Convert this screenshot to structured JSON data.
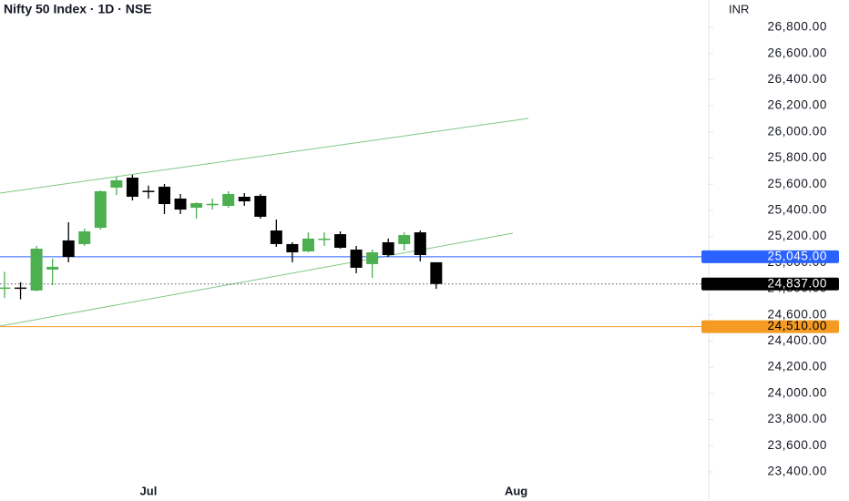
{
  "chart_data": {
    "type": "candlestick",
    "title": "Nifty 50 Index · 1D · NSE",
    "currency": "INR",
    "categories": [
      null,
      null,
      null,
      null,
      null,
      null,
      null,
      null,
      null,
      "Jul",
      null,
      null,
      null,
      null,
      null,
      null,
      null,
      null,
      null,
      null,
      null,
      null,
      null,
      null,
      null,
      null,
      null,
      null,
      null,
      null,
      null,
      null,
      "Aug"
    ],
    "open": [
      24800,
      24810,
      24787,
      24947,
      25170,
      25142,
      25267,
      25574,
      25650,
      25550,
      25581,
      25490,
      25420,
      25446,
      25434,
      25504,
      25511,
      25246,
      25142,
      25086,
      25180,
      25218,
      25100,
      24989,
      25156,
      25142,
      25232,
      25003,
      null,
      null,
      null,
      null,
      null
    ],
    "high": [
      24930,
      24850,
      25128,
      25030,
      25309,
      25260,
      25553,
      25657,
      25671,
      25590,
      25602,
      25525,
      25462,
      25490,
      25546,
      25532,
      25525,
      25330,
      25156,
      25232,
      25232,
      25239,
      25128,
      25100,
      25184,
      25232,
      25246,
      25003,
      null,
      null,
      null,
      null,
      null
    ],
    "low": [
      24730,
      24720,
      24780,
      24828,
      25003,
      25128,
      25253,
      25518,
      25476,
      25490,
      25372,
      25372,
      25337,
      25406,
      25420,
      25434,
      25337,
      25121,
      25003,
      25079,
      25128,
      25107,
      24919,
      24884,
      25044,
      25093,
      25010,
      24800,
      null,
      null,
      null,
      null,
      null
    ],
    "close": [
      24810,
      24800,
      25107,
      24968,
      25044,
      25239,
      25546,
      25630,
      25504,
      25545,
      25448,
      25406,
      25455,
      25450,
      25525,
      25469,
      25351,
      25142,
      25079,
      25184,
      25184,
      25114,
      24961,
      25079,
      25058,
      25211,
      25058,
      24837,
      null,
      null,
      null,
      null,
      null
    ],
    "up_color": "#4caf50",
    "down_color": "#000000",
    "ylim": [
      23177,
      27009
    ],
    "yticks": [
      {
        "value": 23400,
        "label": "23,400.00"
      },
      {
        "value": 23600,
        "label": "23,600.00"
      },
      {
        "value": 23800,
        "label": "23,800.00"
      },
      {
        "value": 24000,
        "label": "24,000.00"
      },
      {
        "value": 24200,
        "label": "24,200.00"
      },
      {
        "value": 24400,
        "label": "24,400.00"
      },
      {
        "value": 24600,
        "label": "24,600.00"
      },
      {
        "value": 24800,
        "label": "24,800.00"
      },
      {
        "value": 25000,
        "label": "25,000.00"
      },
      {
        "value": 25200,
        "label": "25,200.00"
      },
      {
        "value": 25400,
        "label": "25,400.00"
      },
      {
        "value": 25600,
        "label": "25,600.00"
      },
      {
        "value": 25800,
        "label": "25,800.00"
      },
      {
        "value": 26000,
        "label": "26,000.00"
      },
      {
        "value": 26200,
        "label": "26,200.00"
      },
      {
        "value": 26400,
        "label": "26,400.00"
      },
      {
        "value": 26600,
        "label": "26,600.00"
      },
      {
        "value": 26800,
        "label": "26,800.00"
      }
    ],
    "price_lines": [
      {
        "value": 25045,
        "label": "25,045.00",
        "color": "#2962ff",
        "text_color": "#ffffff",
        "style": "solid"
      },
      {
        "value": 24510,
        "label": "24,510.00",
        "color": "#f59a23",
        "text_color": "#000000",
        "style": "solid"
      },
      {
        "value": 24837,
        "label": "24,837.00",
        "color": "#000000",
        "text_color": "#ffffff",
        "style": "dotted"
      }
    ]
  }
}
